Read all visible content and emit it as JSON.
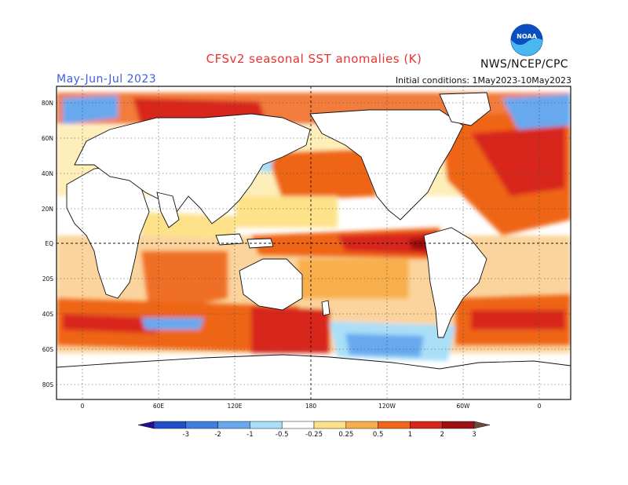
{
  "header": {
    "title": "CFSv2 seasonal SST anomalies (K)",
    "period": "May-Jun-Jul 2023",
    "initial_conditions": "Initial conditions: 1May2023-10May2023",
    "agency": "NWS/NCEP/CPC",
    "logo_icon": "noaa-logo-icon",
    "logo_text": "NOAA"
  },
  "map": {
    "lat_labels": [
      "80N",
      "60N",
      "40N",
      "20N",
      "EQ",
      "20S",
      "40S",
      "60S",
      "80S"
    ],
    "lon_labels": [
      "0",
      "60E",
      "120E",
      "180",
      "120W",
      "60W",
      "0"
    ]
  },
  "legend": {
    "tick_labels": [
      "-3",
      "-2",
      "-1",
      "-0.5",
      "-0.25",
      "0.25",
      "0.5",
      "1",
      "2",
      "3"
    ],
    "colors": [
      "#2a0d8f",
      "#1f4fc7",
      "#3f7fe0",
      "#67a8ef",
      "#a9dff7",
      "#ffffff",
      "#fde28a",
      "#f8ae4c",
      "#ef6519",
      "#d8261b",
      "#9c1111",
      "#6b4b3e"
    ]
  }
}
